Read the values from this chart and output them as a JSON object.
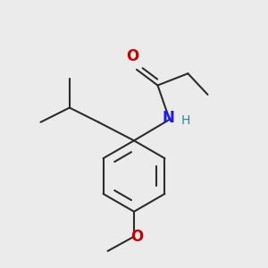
{
  "background_color": "#ebebeb",
  "bond_color": "#2d2d2d",
  "bond_width": 1.5,
  "atom_labels": {
    "O": {
      "color": "#cc0000",
      "fontsize": 12,
      "fontweight": "bold"
    },
    "N": {
      "color": "#1a1aff",
      "fontsize": 12,
      "fontweight": "bold"
    },
    "H": {
      "color": "#2e8b8b",
      "fontsize": 10,
      "fontweight": "normal"
    },
    "methoxy_O": {
      "color": "#cc0000",
      "fontsize": 12,
      "fontweight": "bold"
    }
  },
  "figsize": [
    3.0,
    3.0
  ],
  "dpi": 100,
  "xlim": [
    0,
    10
  ],
  "ylim": [
    0,
    10
  ]
}
